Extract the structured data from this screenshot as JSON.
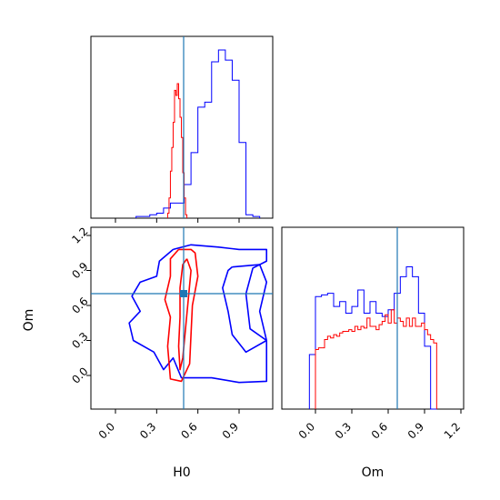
{
  "figure": {
    "type": "corner_plot",
    "parameters": [
      "H0",
      "Om"
    ]
  },
  "colors": {
    "series_a": "#0000ff",
    "series_b": "#ff0000",
    "truth": "#1f77b4"
  },
  "chart_data": [
    {
      "panel": "H0-marginal",
      "type": "histogram",
      "xlabel": "",
      "ylabel": "",
      "xlim": [
        -0.2,
        1.1
      ],
      "bin_width": 0.05,
      "truth_x": 0.5,
      "series": [
        {
          "color": "blue",
          "bins_start": 0.15,
          "values": [
            0.01,
            0.01,
            0.02,
            0.03,
            0.06,
            0.09,
            0.09,
            0.2,
            0.39,
            0.66,
            0.69,
            0.93,
            1.0,
            0.94,
            0.82,
            0.45,
            0.02,
            0.01
          ]
        },
        {
          "color": "red",
          "bins_start": 0.38,
          "bin_width": 0.01,
          "values": [
            0.03,
            0.12,
            0.28,
            0.42,
            0.57,
            0.76,
            0.73,
            0.8,
            0.71,
            0.6,
            0.48,
            0.27,
            0.12,
            0.02
          ]
        }
      ]
    },
    {
      "panel": "H0-Om-2D",
      "type": "contour",
      "xlabel": "H0",
      "ylabel": "Om",
      "xlim": [
        -0.2,
        1.1
      ],
      "ylim": [
        -0.2,
        1.25
      ],
      "xticks": [
        "0.0",
        "0.3",
        "0.6",
        "0.9"
      ],
      "yticks": [
        "0.0",
        "0.3",
        "0.6",
        "0.9",
        "1.2"
      ],
      "truth": {
        "x": 0.5,
        "y": 0.66
      },
      "contours": [
        {
          "color": "blue",
          "level": "outer",
          "points": [
            [
              0.42,
              1.08
            ],
            [
              0.55,
              1.12
            ],
            [
              0.75,
              1.1
            ],
            [
              0.9,
              1.08
            ],
            [
              1.1,
              1.08
            ],
            [
              1.1,
              0.98
            ],
            [
              1.0,
              0.92
            ],
            [
              0.95,
              0.7
            ],
            [
              0.98,
              0.4
            ],
            [
              1.1,
              0.3
            ],
            [
              1.1,
              -0.05
            ],
            [
              0.9,
              -0.06
            ],
            [
              0.7,
              -0.02
            ],
            [
              0.48,
              -0.02
            ],
            [
              0.42,
              0.15
            ],
            [
              0.35,
              0.05
            ],
            [
              0.28,
              0.2
            ],
            [
              0.13,
              0.3
            ],
            [
              0.1,
              0.45
            ],
            [
              0.18,
              0.55
            ],
            [
              0.12,
              0.68
            ],
            [
              0.18,
              0.8
            ],
            [
              0.3,
              0.85
            ],
            [
              0.32,
              0.98
            ],
            [
              0.42,
              1.08
            ]
          ]
        },
        {
          "color": "blue",
          "level": "inner",
          "points": [
            [
              0.85,
              0.93
            ],
            [
              1.05,
              0.95
            ],
            [
              1.1,
              0.8
            ],
            [
              1.05,
              0.55
            ],
            [
              1.1,
              0.3
            ],
            [
              0.95,
              0.2
            ],
            [
              0.85,
              0.35
            ],
            [
              0.82,
              0.55
            ],
            [
              0.78,
              0.75
            ],
            [
              0.82,
              0.9
            ],
            [
              0.85,
              0.93
            ]
          ]
        },
        {
          "color": "red",
          "level": "outer",
          "points": [
            [
              0.46,
              1.08
            ],
            [
              0.55,
              1.08
            ],
            [
              0.58,
              1.05
            ],
            [
              0.6,
              0.85
            ],
            [
              0.56,
              0.6
            ],
            [
              0.55,
              0.35
            ],
            [
              0.54,
              0.1
            ],
            [
              0.48,
              -0.05
            ],
            [
              0.4,
              -0.03
            ],
            [
              0.38,
              0.25
            ],
            [
              0.4,
              0.5
            ],
            [
              0.36,
              0.65
            ],
            [
              0.4,
              0.85
            ],
            [
              0.4,
              1.0
            ],
            [
              0.46,
              1.08
            ]
          ]
        },
        {
          "color": "red",
          "level": "inner",
          "points": [
            [
              0.52,
              1.0
            ],
            [
              0.55,
              0.9
            ],
            [
              0.53,
              0.65
            ],
            [
              0.51,
              0.4
            ],
            [
              0.49,
              0.15
            ],
            [
              0.47,
              0.05
            ],
            [
              0.46,
              0.25
            ],
            [
              0.47,
              0.5
            ],
            [
              0.47,
              0.75
            ],
            [
              0.49,
              0.95
            ],
            [
              0.52,
              1.0
            ]
          ]
        }
      ]
    },
    {
      "panel": "Om-marginal",
      "type": "histogram",
      "xlabel": "Om",
      "ylabel": "",
      "xlim": [
        -0.2,
        1.2
      ],
      "xticks": [
        "0.0",
        "0.3",
        "0.6",
        "0.9",
        "1.2"
      ],
      "truth_x": 0.66,
      "series": [
        {
          "color": "blue",
          "bins_start": -0.05,
          "bin_width": 0.05,
          "values": [
            0.33,
            0.68,
            0.69,
            0.7,
            0.62,
            0.65,
            0.58,
            0.62,
            0.72,
            0.58,
            0.65,
            0.58,
            0.56,
            0.6,
            0.7,
            0.8,
            0.86,
            0.8,
            0.58,
            0.38,
            0.0
          ]
        },
        {
          "color": "red",
          "bins_start": 0.0,
          "bin_width": 0.025,
          "values": [
            0.36,
            0.37,
            0.37,
            0.42,
            0.44,
            0.43,
            0.45,
            0.44,
            0.46,
            0.47,
            0.47,
            0.48,
            0.47,
            0.5,
            0.48,
            0.5,
            0.49,
            0.55,
            0.5,
            0.5,
            0.48,
            0.51,
            0.53,
            0.57,
            0.52,
            0.6,
            0.52,
            0.55,
            0.53,
            0.5,
            0.55,
            0.5,
            0.55,
            0.5,
            0.5,
            0.52,
            0.48,
            0.45,
            0.42,
            0.4
          ]
        }
      ]
    }
  ]
}
